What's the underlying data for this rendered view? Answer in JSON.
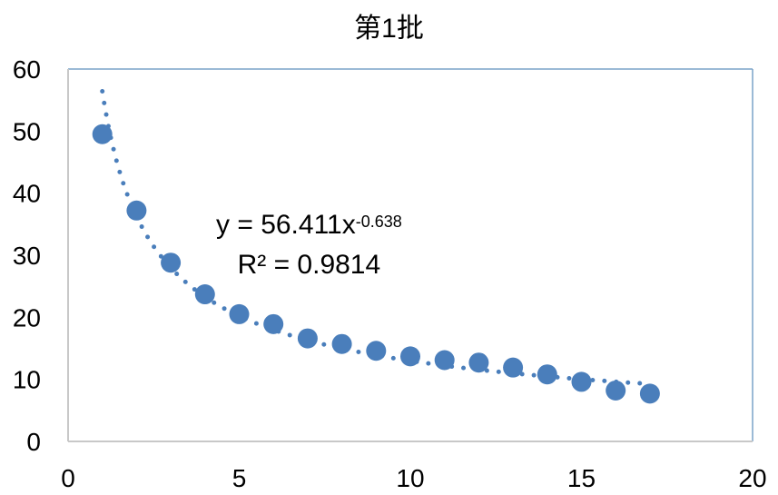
{
  "chart_data": {
    "type": "scatter",
    "title": "第1批",
    "xlabel": "",
    "ylabel": "",
    "xlim": [
      0,
      20
    ],
    "ylim": [
      0,
      60
    ],
    "xticks": [
      0,
      5,
      10,
      15,
      20
    ],
    "yticks": [
      0,
      10,
      20,
      30,
      40,
      50,
      60
    ],
    "grid": false,
    "x": [
      1,
      2,
      3,
      4,
      5,
      6,
      7,
      8,
      9,
      10,
      11,
      12,
      13,
      14,
      15,
      16,
      17
    ],
    "y": [
      49.5,
      37.2,
      28.8,
      23.7,
      20.5,
      18.9,
      16.6,
      15.7,
      14.6,
      13.7,
      13.1,
      12.7,
      11.9,
      10.8,
      9.6,
      8.2,
      7.7
    ],
    "marker_color": "#4a7ebb",
    "trendline": {
      "type": "power",
      "coefficient": 56.411,
      "exponent": -0.638,
      "style": "dotted",
      "equation_prefix": "y = 56.411x",
      "equation_exponent": "-0.638",
      "r_squared_label": "R² = 0.9814"
    }
  }
}
